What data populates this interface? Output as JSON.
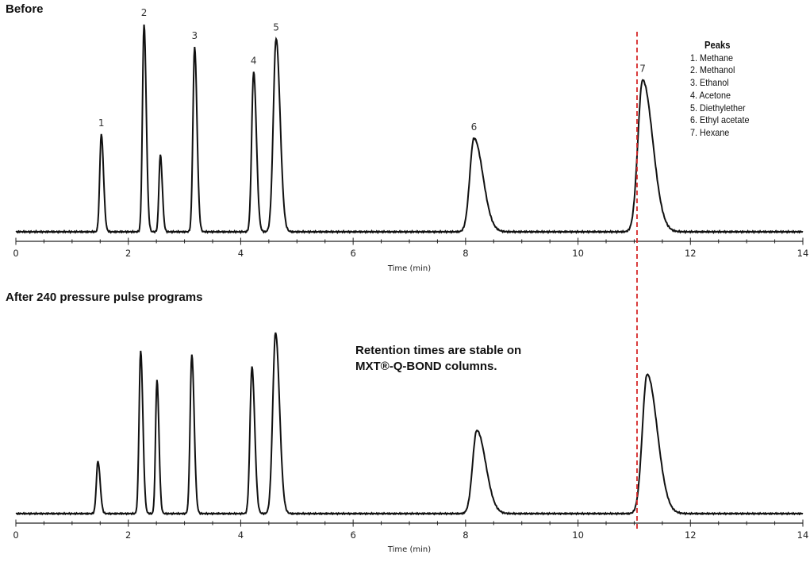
{
  "chart_data": [
    {
      "type": "line",
      "title": "Before",
      "xlabel": "Time (min)",
      "ylabel": "",
      "xlim": [
        0,
        14
      ],
      "xticks": [
        "0",
        "2",
        "4",
        "6",
        "8",
        "10",
        "12",
        "14"
      ],
      "grid": false,
      "peaks": [
        {
          "label": "1",
          "x": 1.52,
          "height": 0.47
        },
        {
          "label": "2",
          "x": 2.28,
          "height": 1.0
        },
        {
          "label": "",
          "x": 2.57,
          "height": 0.37
        },
        {
          "label": "3",
          "x": 3.18,
          "height": 0.89
        },
        {
          "label": "4",
          "x": 4.23,
          "height": 0.77
        },
        {
          "label": "5",
          "x": 4.63,
          "height": 0.93
        },
        {
          "label": "6",
          "x": 8.15,
          "height": 0.45
        },
        {
          "label": "7",
          "x": 11.15,
          "height": 0.73
        }
      ],
      "reference_line": {
        "x": 11.05,
        "color": "#d62728",
        "style": "dashed"
      }
    },
    {
      "type": "line",
      "title": "After 240 pressure pulse programs",
      "xlabel": "Time (min)",
      "ylabel": "",
      "xlim": [
        0,
        14
      ],
      "xticks": [
        "0",
        "2",
        "4",
        "6",
        "8",
        "10",
        "12",
        "14"
      ],
      "grid": false,
      "peaks": [
        {
          "label": "",
          "x": 1.46,
          "height": 0.29
        },
        {
          "label": "",
          "x": 2.22,
          "height": 0.9
        },
        {
          "label": "",
          "x": 2.51,
          "height": 0.74
        },
        {
          "label": "",
          "x": 3.13,
          "height": 0.88
        },
        {
          "label": "",
          "x": 4.2,
          "height": 0.81
        },
        {
          "label": "",
          "x": 4.62,
          "height": 1.0
        },
        {
          "label": "",
          "x": 8.2,
          "height": 0.46
        },
        {
          "label": "",
          "x": 11.23,
          "height": 0.77
        }
      ],
      "reference_line": {
        "x": 11.05,
        "color": "#d62728",
        "style": "dashed"
      }
    }
  ],
  "panels": {
    "top_title": "Before",
    "bottom_title": "After 240 pressure pulse programs"
  },
  "legend": {
    "title": "Peaks",
    "items": [
      "1. Methane",
      "2. Methanol",
      "3. Ethanol",
      "4. Acetone",
      "5. Diethylether",
      "6. Ethyl acetate",
      "7. Hexane"
    ]
  },
  "annotation": {
    "line1": "Retention  times are stable on",
    "line2": "MXT®-Q-BOND columns."
  },
  "colors": {
    "trace": "#111111",
    "reference_line": "#d62728"
  }
}
